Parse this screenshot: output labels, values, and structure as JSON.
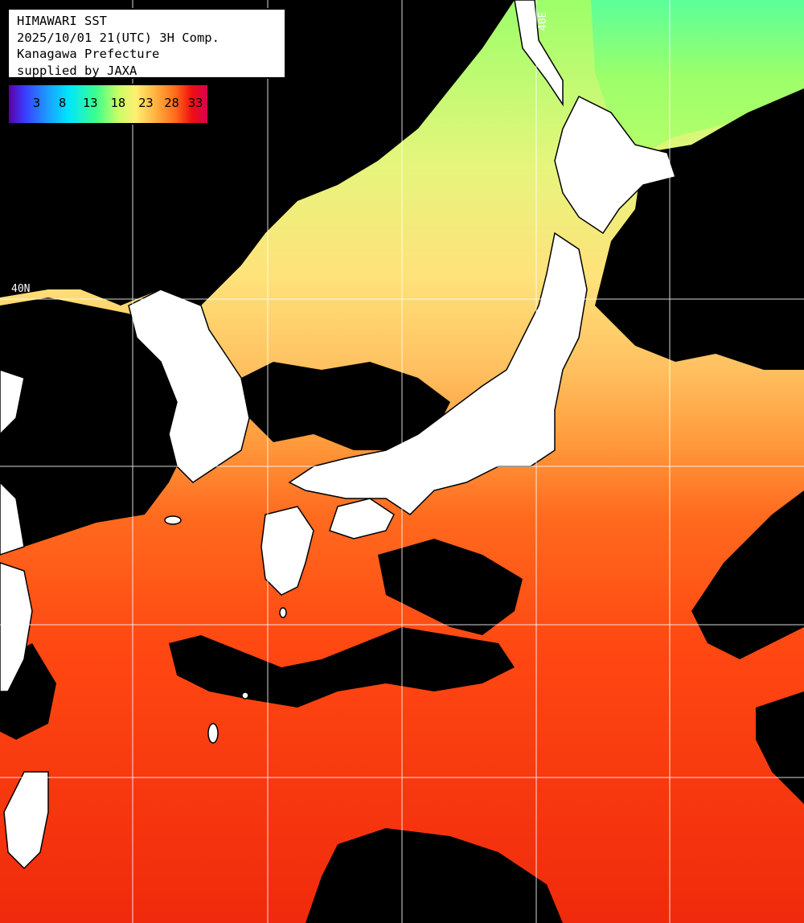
{
  "header": {
    "line1": "HIMAWARI SST",
    "line2": "2025/10/01 21(UTC) 3H Comp.",
    "line3": "Kanagawa Prefecture",
    "line4": "supplied by JAXA"
  },
  "legend": {
    "ticks": [
      "3",
      "8",
      "13",
      "18",
      "23",
      "28",
      "33"
    ]
  },
  "grid_labels": {
    "lat": "40N",
    "lon": "40E"
  },
  "colors": {
    "land": "#ffffff",
    "cloud": "#000000",
    "gridline": "#ffffff",
    "sst_cold": "#3cff8c",
    "sst_cool": "#c8ff64",
    "sst_mild": "#ffe27a",
    "sst_warm": "#ff9a3c",
    "sst_hot": "#ff5a14",
    "sst_hottest": "#e82810"
  }
}
